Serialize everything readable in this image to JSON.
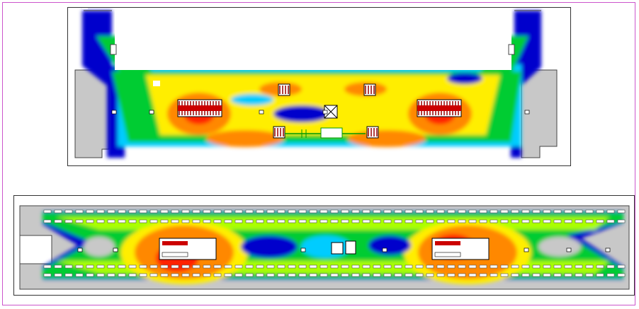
{
  "figure": {
    "type": "heatmap",
    "palette": [
      "#0000cc",
      "#00ccff",
      "#00cc33",
      "#aaff00",
      "#ffee00",
      "#ff8800",
      "#ff2200",
      "#cc0000"
    ],
    "floor_color": "#c8c8c8",
    "wall_color": "#444444",
    "frame_color": "#cc55cc",
    "panels": [
      {
        "name": "upper-level-plan",
        "legend": []
      },
      {
        "name": "lower-level-plan",
        "legend": []
      }
    ]
  }
}
